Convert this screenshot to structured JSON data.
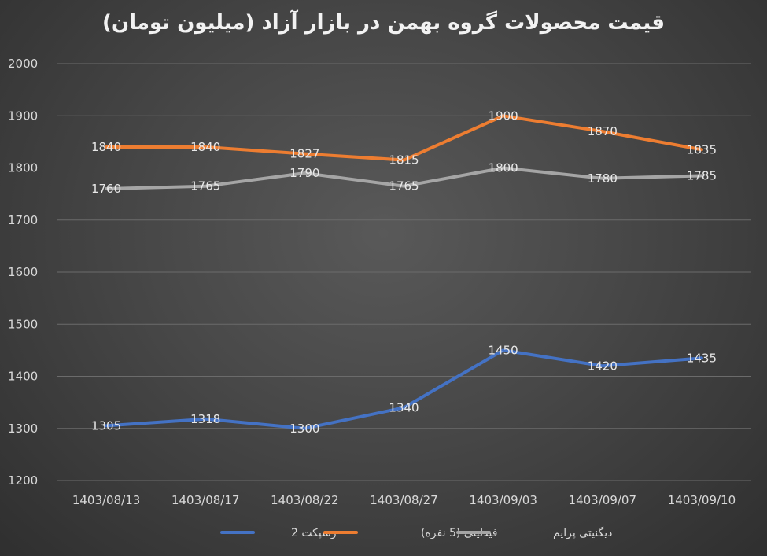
{
  "chart_data": {
    "type": "line",
    "title": "قیمت محصولات گروه بهمن در بازار آزاد (میلیون تومان)",
    "categories": [
      "1403/08/13",
      "1403/08/17",
      "1403/08/22",
      "1403/08/27",
      "1403/09/03",
      "1403/09/07",
      "1403/09/10"
    ],
    "ylim": [
      1200,
      2000
    ],
    "yticks": [
      1200,
      1300,
      1400,
      1500,
      1600,
      1700,
      1800,
      1900,
      2000
    ],
    "grid": true,
    "legend_position": "bottom",
    "series": [
      {
        "name": "رسپکت 2",
        "color": "#4472c4",
        "values": [
          1305,
          1318,
          1300,
          1340,
          1450,
          1420,
          1435
        ]
      },
      {
        "name": "فیدلیتی (5 نفره)",
        "color": "#ed7d31",
        "values": [
          1840,
          1840,
          1827,
          1815,
          1900,
          1870,
          1835
        ]
      },
      {
        "name": "دیگنیتی پرایم",
        "color": "#a5a5a5",
        "values": [
          1760,
          1765,
          1790,
          1765,
          1800,
          1780,
          1785
        ]
      }
    ]
  }
}
